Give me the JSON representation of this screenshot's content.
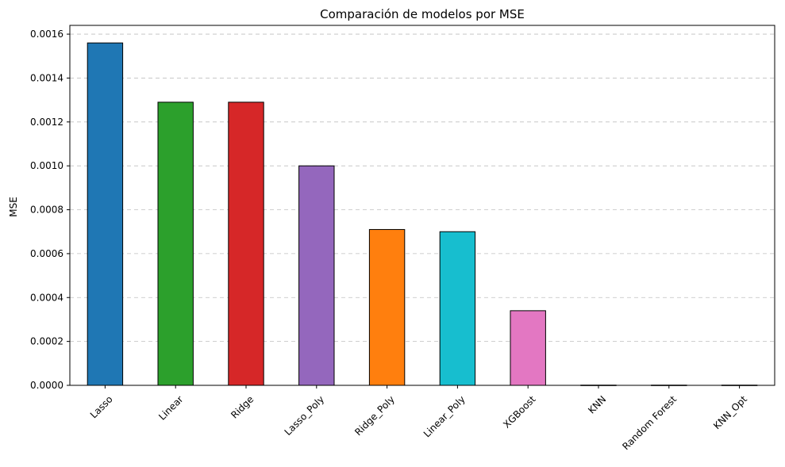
{
  "chart_data": {
    "type": "bar",
    "title": "Comparación de modelos por MSE",
    "xlabel": "",
    "ylabel": "MSE",
    "categories": [
      "Lasso",
      "Linear",
      "Ridge",
      "Lasso_Poly",
      "Ridge_Poly",
      "Linear_Poly",
      "XGBoost",
      "KNN",
      "Random Forest",
      "KNN_Opt"
    ],
    "values": [
      0.00156,
      0.00129,
      0.00129,
      0.001,
      0.00071,
      0.0007,
      0.00034,
      1e-06,
      1e-06,
      1e-06
    ],
    "colors": [
      "#1f77b4",
      "#2ca02c",
      "#d62728",
      "#9467bd",
      "#ff7f0e",
      "#17becf",
      "#e377c2",
      "#7f7f7f",
      "#bcbd22",
      "#8c564b"
    ],
    "ylim": [
      0,
      0.00164
    ],
    "yticks": [
      0,
      0.0002,
      0.0004,
      0.0006,
      0.0008,
      0.001,
      0.0012,
      0.0014,
      0.0016
    ],
    "ytick_labels": [
      "0.0000",
      "0.0002",
      "0.0004",
      "0.0006",
      "0.0008",
      "0.0010",
      "0.0012",
      "0.0014",
      "0.0016"
    ],
    "grid": "y-dashed",
    "legend": "none"
  }
}
